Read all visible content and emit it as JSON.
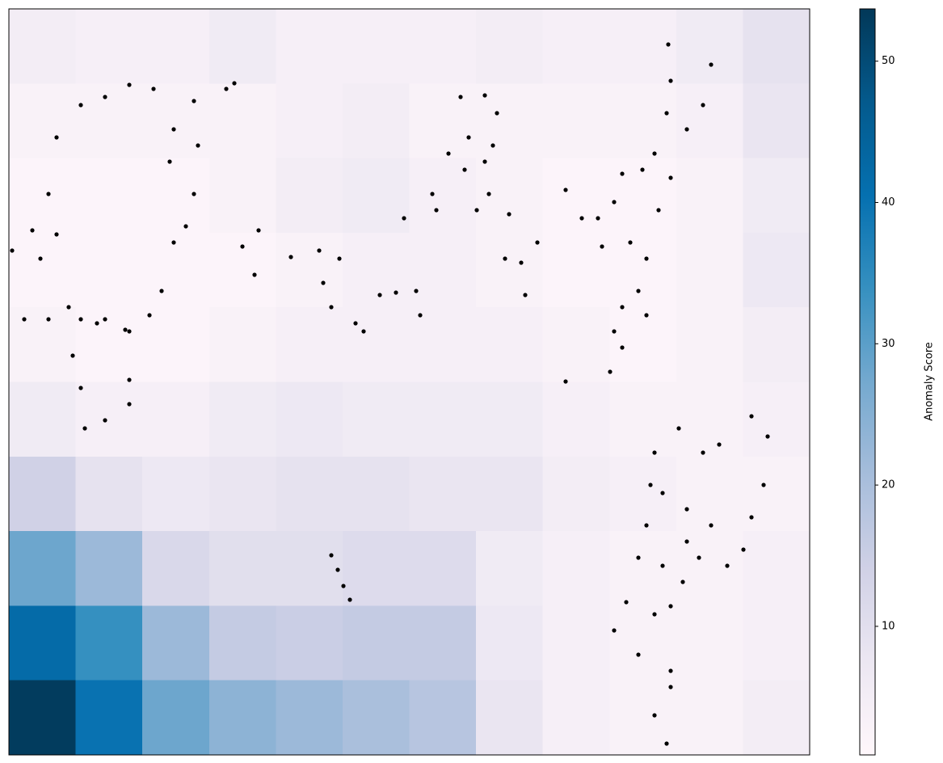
{
  "chart_data": {
    "type": "scatter",
    "x": [
      4,
      29,
      49,
      59,
      89,
      119,
      149,
      179,
      229,
      234,
      229,
      204,
      189,
      174,
      149,
      119,
      89,
      49,
      19,
      74,
      79,
      89,
      94,
      119,
      149,
      149,
      109,
      144,
      204,
      199,
      219,
      269,
      279,
      59,
      39,
      289,
      309,
      304,
      349,
      384,
      409,
      389,
      399,
      429,
      439,
      459,
      479,
      509,
      504,
      489,
      524,
      529,
      559,
      589,
      604,
      569,
      599,
      589,
      564,
      594,
      579,
      619,
      544,
      614,
      634,
      654,
      639,
      816,
      819,
      814,
      869,
      859,
      839,
      799,
      784,
      759,
      749,
      729,
      689,
      709,
      734,
      769,
      789,
      779,
      759,
      749,
      744,
      759,
      789,
      819,
      804,
      689,
      799,
      829,
      859,
      879,
      919,
      939,
      934,
      919,
      909,
      889,
      869,
      839,
      809,
      789,
      779,
      809,
      839,
      834,
      819,
      799,
      764,
      749,
      779,
      819,
      819,
      799,
      814,
      854,
      794,
      399,
      407,
      414,
      422
    ],
    "y": [
      624,
      649,
      694,
      764,
      804,
      814,
      829,
      824,
      809,
      754,
      694,
      634,
      574,
      544,
      524,
      539,
      539,
      539,
      539,
      554,
      494,
      454,
      404,
      414,
      434,
      464,
      534,
      526,
      774,
      734,
      654,
      824,
      831,
      644,
      614,
      629,
      649,
      594,
      616,
      624,
      614,
      584,
      554,
      534,
      524,
      569,
      572,
      544,
      574,
      664,
      694,
      674,
      814,
      816,
      794,
      764,
      754,
      734,
      724,
      694,
      674,
      669,
      744,
      614,
      609,
      634,
      569,
      879,
      834,
      794,
      854,
      804,
      774,
      744,
      724,
      719,
      684,
      664,
      699,
      664,
      629,
      634,
      614,
      574,
      554,
      524,
      474,
      504,
      544,
      714,
      674,
      462,
      374,
      404,
      374,
      384,
      419,
      394,
      334,
      294,
      254,
      234,
      284,
      304,
      324,
      284,
      244,
      234,
      264,
      214,
      184,
      174,
      189,
      154,
      124,
      104,
      84,
      49,
      14,
      244,
      334,
      247,
      229,
      209,
      192
    ],
    "color": "#000000",
    "xlim": [
      0,
      991
    ],
    "ylim": [
      0,
      923
    ],
    "heatmap": {
      "z": [
        [
          5,
          4,
          4,
          6,
          4,
          4,
          4,
          5,
          4,
          4,
          6,
          9
        ],
        [
          3,
          3,
          3,
          3,
          4,
          5,
          3,
          3,
          3,
          3,
          4,
          8
        ],
        [
          2,
          2,
          2,
          3,
          5,
          6,
          4,
          3,
          2,
          2,
          3,
          6
        ],
        [
          2,
          2,
          2,
          2,
          3,
          4,
          4,
          3,
          2,
          2,
          3,
          7
        ],
        [
          3,
          2,
          2,
          3,
          4,
          4,
          4,
          4,
          3,
          2,
          3,
          5
        ],
        [
          6,
          4,
          4,
          6,
          7,
          6,
          6,
          6,
          4,
          3,
          3,
          4
        ],
        [
          14,
          9,
          7,
          8,
          9,
          9,
          8,
          8,
          5,
          4,
          3,
          3
        ],
        [
          28,
          22,
          12,
          10,
          10,
          11,
          11,
          6,
          4,
          3,
          3,
          4
        ],
        [
          42,
          34,
          22,
          16,
          15,
          16,
          16,
          7,
          4,
          3,
          3,
          4
        ],
        [
          53,
          40,
          28,
          24,
          22,
          20,
          18,
          8,
          4,
          3,
          3,
          5
        ]
      ]
    },
    "colorbar": {
      "label": "Anomaly Score",
      "clim": [
        0.9,
        53.7
      ],
      "ticks": [
        10,
        20,
        30,
        40,
        50
      ],
      "colormap": [
        "#fff7fb",
        "#ece7f2",
        "#d0d1e6",
        "#a6bddb",
        "#74a9cf",
        "#3690c0",
        "#0570b0",
        "#045a8d",
        "#023858"
      ]
    }
  }
}
